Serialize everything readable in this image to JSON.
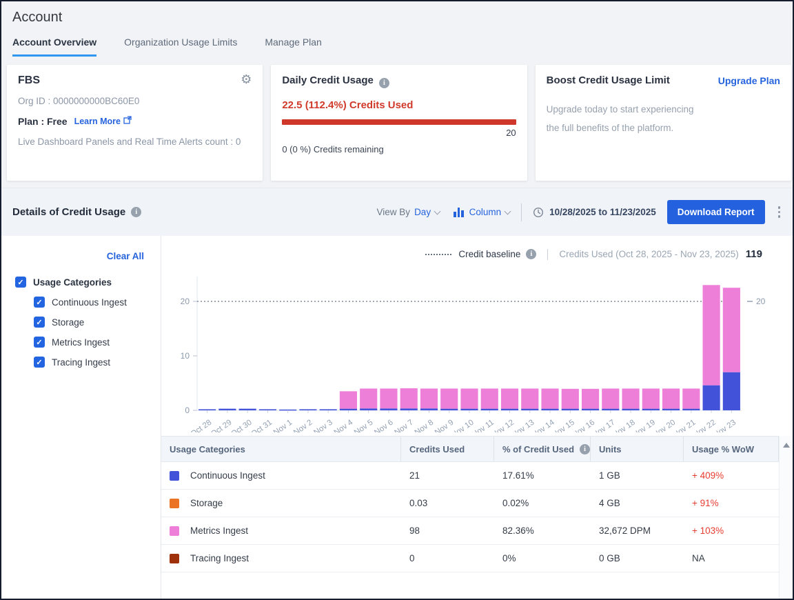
{
  "page": {
    "title": "Account"
  },
  "tabs": [
    {
      "label": "Account Overview"
    },
    {
      "label": "Organization Usage Limits"
    },
    {
      "label": "Manage Plan"
    }
  ],
  "org_card": {
    "name": "FBS",
    "org_id": "Org ID : 0000000000BC60E0",
    "plan_label": "Plan : Free",
    "learn_more": "Learn More",
    "dashboards_line": "Live Dashboard Panels and Real Time Alerts count : 0"
  },
  "daily_credit": {
    "title": "Daily Credit Usage",
    "used_line": "22.5 (112.4%) Credits Used",
    "limit": "20",
    "remaining_line": "0 (0 %) Credits remaining",
    "bar_color": "#cf372a"
  },
  "boost_card": {
    "title": "Boost Credit Usage Limit",
    "action": "Upgrade Plan",
    "line1": "Upgrade today to start experiencing",
    "line2": "the full benefits of the platform."
  },
  "details": {
    "title": "Details of Credit Usage",
    "view_by_label": "View By",
    "view_by_value": "Day",
    "chart_type_value": "Column",
    "date_range": "10/28/2025 to 11/23/2025",
    "download_label": "Download Report"
  },
  "filters": {
    "clear_all": "Clear All",
    "parent": "Usage Categories",
    "items": [
      {
        "label": "Continuous Ingest",
        "checked": true
      },
      {
        "label": "Storage",
        "checked": true
      },
      {
        "label": "Metrics Ingest",
        "checked": true
      },
      {
        "label": "Tracing Ingest",
        "checked": true
      }
    ]
  },
  "legend": {
    "baseline_label": "Credit baseline",
    "credits_used_label": "Credits Used (Oct 28, 2025 - Nov 23, 2025)",
    "credits_used_value": "119"
  },
  "chart_data": {
    "type": "bar",
    "stacked": true,
    "title": "Credits Used (Oct 28, 2025 - Nov 23, 2025)",
    "total_credits_used": 119,
    "categories": [
      "Oct 28",
      "Oct 29",
      "Oct 30",
      "Oct 31",
      "Nov 1",
      "Nov 2",
      "Nov 3",
      "Nov 4",
      "Nov 5",
      "Nov 6",
      "Nov 7",
      "Nov 8",
      "Nov 9",
      "Nov 10",
      "Nov 11",
      "Nov 12",
      "Nov 13",
      "Nov 14",
      "Nov 15",
      "Nov 16",
      "Nov 17",
      "Nov 18",
      "Nov 19",
      "Nov 20",
      "Nov 21",
      "Nov 22",
      "Nov 23"
    ],
    "series": [
      {
        "name": "Continuous Ingest",
        "color": "#4353d9",
        "values": [
          0.2,
          0.3,
          0.3,
          0.2,
          0.15,
          0.2,
          0.2,
          0.3,
          0.35,
          0.35,
          0.35,
          0.35,
          0.3,
          0.3,
          0.3,
          0.3,
          0.3,
          0.3,
          0.3,
          0.3,
          0.3,
          0.3,
          0.3,
          0.3,
          0.3,
          4.6,
          7.0
        ]
      },
      {
        "name": "Metrics Ingest",
        "color": "#ee7fd9",
        "values": [
          0,
          0,
          0,
          0,
          0,
          0,
          0,
          3.2,
          3.65,
          3.65,
          3.7,
          3.65,
          3.7,
          3.7,
          3.7,
          3.7,
          3.7,
          3.7,
          3.65,
          3.65,
          3.7,
          3.7,
          3.7,
          3.7,
          3.7,
          18.4,
          15.5
        ]
      }
    ],
    "baseline": {
      "label": "Credit baseline",
      "value": 20
    },
    "yticks": [
      0,
      10,
      20
    ],
    "ylim": [
      0,
      26
    ],
    "right_axis_label": "20",
    "legend_position": "top-right",
    "grid": false
  },
  "table": {
    "headers": [
      "Usage Categories",
      "Credits Used",
      "% of Credit Used",
      "Units",
      "Usage % WoW"
    ],
    "rows": [
      {
        "label": "Continuous Ingest",
        "color": "#4353d9",
        "credits": "21",
        "pct": "17.61%",
        "units": "1 GB",
        "wow": "+ 409%"
      },
      {
        "label": "Storage",
        "color": "#ea7325",
        "credits": "0.03",
        "pct": "0.02%",
        "units": "4 GB",
        "wow": "+ 91%"
      },
      {
        "label": "Metrics Ingest",
        "color": "#ee7fd9",
        "credits": "98",
        "pct": "82.36%",
        "units": "32,672 DPM",
        "wow": "+ 103%"
      },
      {
        "label": "Tracing Ingest",
        "color": "#9e300c",
        "credits": "0",
        "pct": "0%",
        "units": "0 GB",
        "wow": "NA"
      }
    ]
  }
}
